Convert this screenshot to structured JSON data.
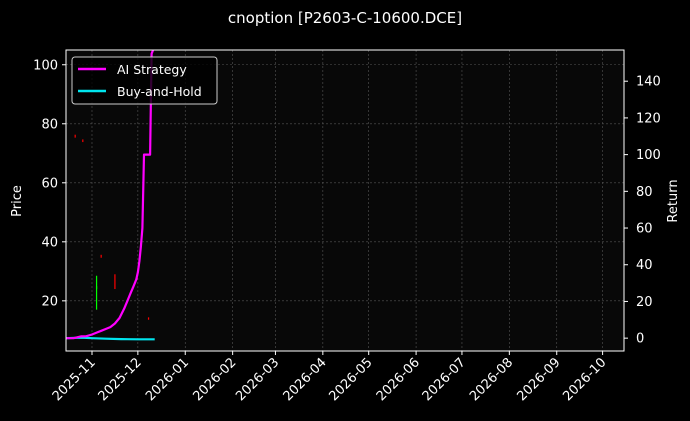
{
  "chart_data": {
    "type": "line",
    "title": "cnoption [P2603-C-10600.DCE]",
    "ylabel_left": "Price",
    "ylabel_right": "Return",
    "x_tick_labels": [
      "2025-11",
      "2025-12",
      "2026-01",
      "2026-02",
      "2026-03",
      "2026-04",
      "2026-05",
      "2026-06",
      "2026-07",
      "2026-08",
      "2026-09",
      "2026-10"
    ],
    "xlim": [
      "2025-10-15",
      "2026-10-15"
    ],
    "ylim_left": [
      3,
      105
    ],
    "ylim_right": [
      -7,
      157
    ],
    "y_ticks_left": [
      20,
      40,
      60,
      80,
      100
    ],
    "y_ticks_right": [
      0,
      20,
      40,
      60,
      80,
      100,
      120,
      140
    ],
    "grid": true,
    "legend_position": "top-left",
    "series": [
      {
        "name": "AI Strategy",
        "axis": "right",
        "color": "#ff00ff",
        "x": [
          "2025-10-15",
          "2025-10-20",
          "2025-10-25",
          "2025-10-28",
          "2025-11-01",
          "2025-11-04",
          "2025-11-07",
          "2025-11-10",
          "2025-11-13",
          "2025-11-16",
          "2025-11-19",
          "2025-11-22",
          "2025-11-24",
          "2025-11-26",
          "2025-11-28",
          "2025-11-30",
          "2025-12-01",
          "2025-12-02",
          "2025-12-03",
          "2025-12-04",
          "2025-12-05",
          "2025-12-06",
          "2025-12-07",
          "2025-12-08",
          "2025-12-09",
          "2025-12-10",
          "2025-12-11"
        ],
        "values": [
          0,
          0,
          1,
          1,
          2,
          3,
          4,
          5,
          6,
          8,
          11,
          16,
          20,
          24,
          28,
          32,
          36,
          42,
          50,
          60,
          100,
          100,
          100,
          100,
          100,
          155,
          157
        ]
      },
      {
        "name": "Buy-and-Hold",
        "axis": "right",
        "color": "#00e5ee",
        "x": [
          "2025-10-15",
          "2025-10-25",
          "2025-11-01",
          "2025-11-10",
          "2025-11-20",
          "2025-12-01",
          "2025-12-12"
        ],
        "values": [
          0,
          0.3,
          0,
          -0.3,
          -0.5,
          -0.6,
          -0.6
        ]
      }
    ],
    "candles": [
      {
        "x": "2025-10-21",
        "low": 75.3,
        "high": 76.3,
        "color": "#ff0000"
      },
      {
        "x": "2025-10-26",
        "low": 73.8,
        "high": 74.7,
        "color": "#ff0000"
      },
      {
        "x": "2025-11-04",
        "low": 17,
        "high": 25,
        "color": "#00ff00"
      },
      {
        "x": "2025-11-04",
        "low": 24,
        "high": 28.5,
        "color": "#00ff00"
      },
      {
        "x": "2025-11-07",
        "low": 34.6,
        "high": 35.6,
        "color": "#ff0000"
      },
      {
        "x": "2025-11-16",
        "low": 24,
        "high": 29,
        "color": "#ff0000"
      },
      {
        "x": "2025-12-08",
        "low": 13.6,
        "high": 14.4,
        "color": "#ff0000"
      }
    ]
  }
}
